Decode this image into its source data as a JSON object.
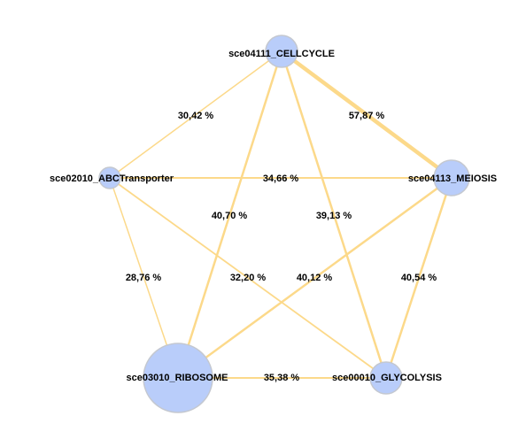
{
  "network": {
    "node_color": "#b9cdfa",
    "edge_color": "#fcd98a",
    "label_color": "#000000",
    "nodes": [
      {
        "id": "cellcycle",
        "label": "sce04111_CELLCYCLE"
      },
      {
        "id": "abc",
        "label": "sce02010_ABCTransporter"
      },
      {
        "id": "meiosis",
        "label": "sce04113_MEIOSIS"
      },
      {
        "id": "ribosome",
        "label": "sce03010_RIBOSOME"
      },
      {
        "id": "glycolysis",
        "label": "sce00010_GLYCOLYSIS"
      }
    ],
    "edges": [
      {
        "id": "cellcycle-abc",
        "source": "cellcycle",
        "target": "abc",
        "label": "30,42 %",
        "value": 30.42
      },
      {
        "id": "cellcycle-meiosis",
        "source": "cellcycle",
        "target": "meiosis",
        "label": "57,87 %",
        "value": 57.87
      },
      {
        "id": "abc-meiosis",
        "source": "abc",
        "target": "meiosis",
        "label": "34,66 %",
        "value": 34.66
      },
      {
        "id": "cellcycle-ribosome",
        "source": "cellcycle",
        "target": "ribosome",
        "label": "40,70 %",
        "value": 40.7
      },
      {
        "id": "cellcycle-glycolysis",
        "source": "cellcycle",
        "target": "glycolysis",
        "label": "39,13 %",
        "value": 39.13
      },
      {
        "id": "abc-ribosome",
        "source": "abc",
        "target": "ribosome",
        "label": "28,76 %",
        "value": 28.76
      },
      {
        "id": "abc-glycolysis",
        "source": "abc",
        "target": "glycolysis",
        "label": "32,20 %",
        "value": 32.2
      },
      {
        "id": "meiosis-ribosome",
        "source": "meiosis",
        "target": "ribosome",
        "label": "40,12 %",
        "value": 40.12
      },
      {
        "id": "meiosis-glycolysis",
        "source": "meiosis",
        "target": "glycolysis",
        "label": "40,54 %",
        "value": 40.54
      },
      {
        "id": "ribosome-glycolysis",
        "source": "ribosome",
        "target": "glycolysis",
        "label": "35,38 %",
        "value": 35.38
      }
    ]
  }
}
